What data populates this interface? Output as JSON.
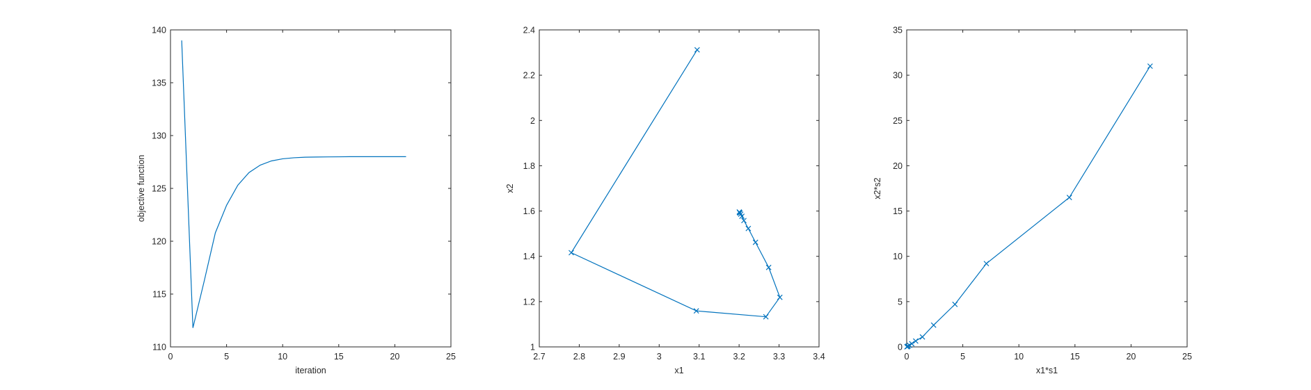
{
  "figure": {
    "background": "#ffffff",
    "line_color": "#0072BD",
    "axis_color": "#262626"
  },
  "chart_data": [
    {
      "type": "line",
      "title": "",
      "xlabel": "iteration",
      "ylabel": "objective function",
      "xlim": [
        0,
        25
      ],
      "ylim": [
        110,
        140
      ],
      "xticks": [
        0,
        5,
        10,
        15,
        20,
        25
      ],
      "yticks": [
        110,
        115,
        120,
        125,
        130,
        135,
        140
      ],
      "markers": false,
      "grid": false,
      "series": [
        {
          "x": [
            1,
            2,
            3,
            4,
            5,
            6,
            7,
            8,
            9,
            10,
            11,
            12,
            13,
            14,
            15,
            16,
            17,
            18,
            19,
            20,
            21
          ],
          "y": [
            139,
            111.8,
            116.2,
            120.8,
            123.4,
            125.3,
            126.5,
            127.2,
            127.6,
            127.8,
            127.9,
            127.95,
            127.97,
            127.98,
            127.99,
            128,
            128,
            128,
            128,
            128,
            128
          ]
        }
      ]
    },
    {
      "type": "line",
      "title": "",
      "xlabel": "x1",
      "ylabel": "x2",
      "xlim": [
        2.7,
        3.4
      ],
      "ylim": [
        1,
        2.4
      ],
      "xticks": [
        2.7,
        2.8,
        2.9,
        3,
        3.1,
        3.2,
        3.3,
        3.4
      ],
      "yticks": [
        1,
        1.2,
        1.4,
        1.6,
        1.8,
        2,
        2.2,
        2.4
      ],
      "markers": true,
      "grid": false,
      "series": [
        {
          "x": [
            3.095,
            2.78,
            3.093,
            3.267,
            3.302,
            3.274,
            3.241,
            3.223,
            3.212,
            3.207,
            3.204,
            3.202,
            3.201,
            3.2005
          ],
          "y": [
            2.312,
            1.416,
            1.159,
            1.133,
            1.219,
            1.351,
            1.462,
            1.523,
            1.558,
            1.577,
            1.586,
            1.591,
            1.594,
            1.596
          ]
        }
      ]
    },
    {
      "type": "line",
      "title": "",
      "xlabel": "x1*s1",
      "ylabel": "x2*s2",
      "xlim": [
        0,
        25
      ],
      "ylim": [
        0,
        35
      ],
      "xticks": [
        0,
        5,
        10,
        15,
        20,
        25
      ],
      "yticks": [
        0,
        5,
        10,
        15,
        20,
        25,
        30,
        35
      ],
      "markers": true,
      "grid": false,
      "series": [
        {
          "x": [
            21.7,
            14.5,
            7.1,
            4.3,
            2.4,
            1.4,
            0.8,
            0.45,
            0.25,
            0.12,
            0.05,
            0.02
          ],
          "y": [
            31.0,
            16.5,
            9.2,
            4.7,
            2.4,
            1.1,
            0.65,
            0.35,
            0.18,
            0.08,
            0.03,
            0.01
          ]
        }
      ]
    }
  ]
}
